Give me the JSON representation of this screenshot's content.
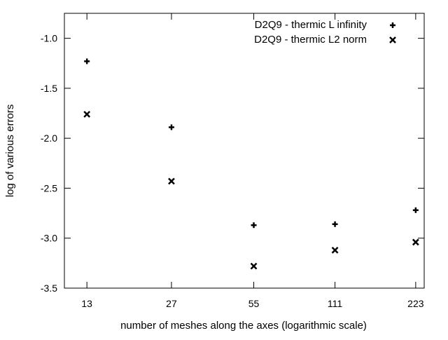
{
  "chart_data": {
    "type": "scatter",
    "title": "",
    "xlabel": "number of meshes along the axes (logarithmic scale)",
    "ylabel": "log of various errors",
    "x_scale": "log",
    "x_ticks": [
      13,
      27,
      55,
      111,
      223
    ],
    "x_tick_labels": [
      "13",
      "27",
      "55",
      "111",
      "223"
    ],
    "xlim": [
      10.7,
      240
    ],
    "ylim": [
      -3.5,
      -0.75
    ],
    "y_ticks": [
      -1.0,
      -1.5,
      -2.0,
      -2.5,
      -3.0,
      -3.5
    ],
    "y_tick_labels": [
      "-1.0",
      "-1.5",
      "-2.0",
      "-2.5",
      "-3.0",
      "-3.5"
    ],
    "grid": false,
    "legend_position": "top-right",
    "series": [
      {
        "name": "D2Q9 - thermic L infinity",
        "marker": "plus",
        "color": "#000000",
        "x": [
          13,
          27,
          55,
          111,
          223
        ],
        "y": [
          -1.23,
          -1.89,
          -2.87,
          -2.86,
          -2.72
        ]
      },
      {
        "name": "D2Q9 - thermic L2 norm",
        "marker": "cross",
        "color": "#000000",
        "x": [
          13,
          27,
          55,
          111,
          223
        ],
        "y": [
          -1.76,
          -2.43,
          -3.28,
          -3.12,
          -3.04
        ]
      }
    ]
  }
}
